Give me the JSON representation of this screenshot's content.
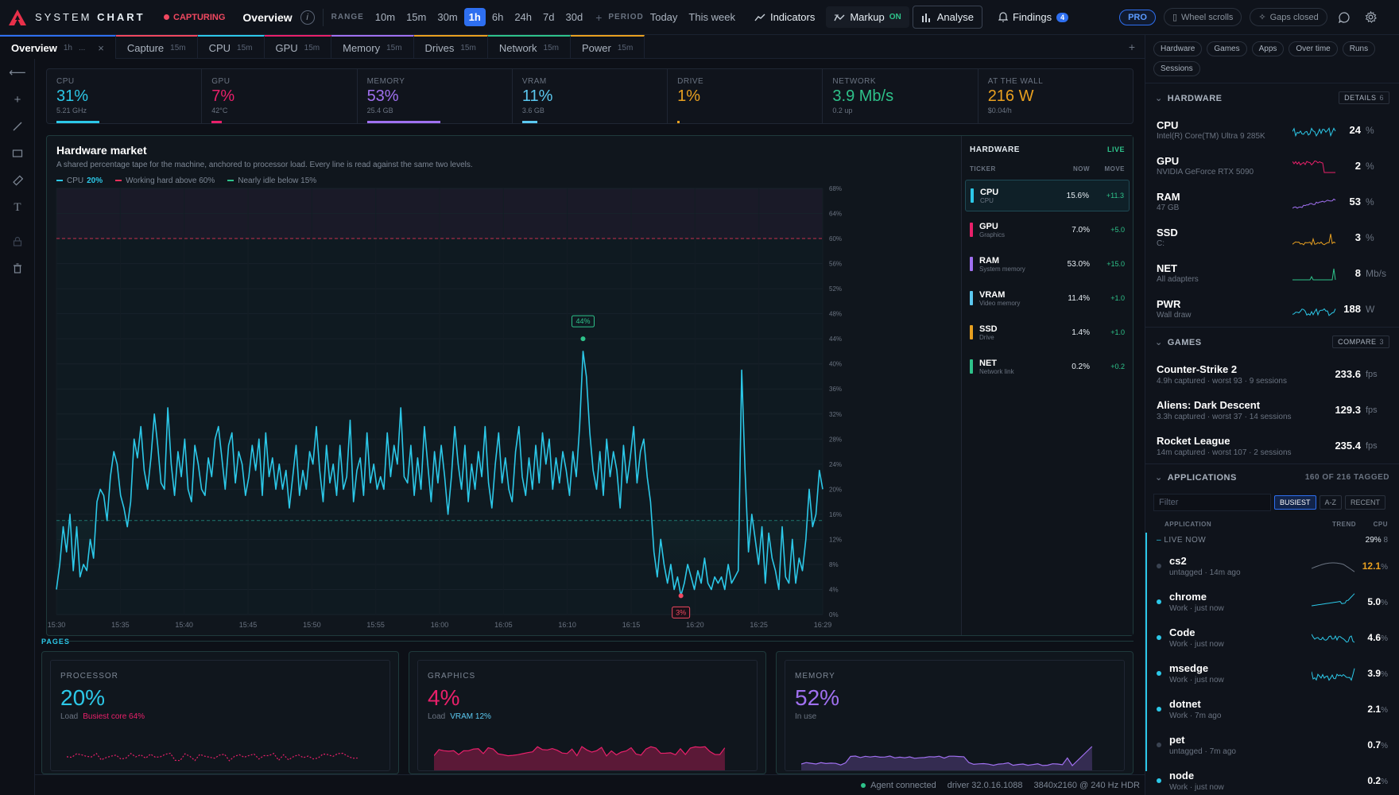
{
  "app": {
    "name_bold": "CHART",
    "name_thin": "SYSTEM ",
    "capturing": "CAPTURING",
    "title": "Overview",
    "info": "i"
  },
  "range": {
    "label": "RANGE",
    "options": [
      "10m",
      "15m",
      "30m",
      "1h",
      "6h",
      "24h",
      "7d",
      "30d"
    ],
    "active": "1h"
  },
  "period": {
    "label": "PERIOD",
    "options": [
      "Today",
      "This week"
    ]
  },
  "tools": {
    "indicators": "Indicators",
    "markup": "Markup",
    "markup_state": "ON",
    "analyse": "Analyse",
    "findings": "Findings",
    "findings_count": "4"
  },
  "badges": {
    "pro": "PRO",
    "wheel": "Wheel scrolls",
    "gaps": "Gaps closed"
  },
  "tabs": [
    {
      "label": "Overview",
      "dur": "1h",
      "extra": "...",
      "close": "×",
      "accent": "#2e6ff0"
    },
    {
      "label": "Capture",
      "dur": "15m",
      "accent": "#f04860"
    },
    {
      "label": "CPU",
      "dur": "15m",
      "accent": "#2cc8e8"
    },
    {
      "label": "GPU",
      "dur": "15m",
      "accent": "#e8206a"
    },
    {
      "label": "Memory",
      "dur": "15m",
      "accent": "#a070f0"
    },
    {
      "label": "Drives",
      "dur": "15m",
      "accent": "#e8a020"
    },
    {
      "label": "Network",
      "dur": "15m",
      "accent": "#2ec28a"
    },
    {
      "label": "Power",
      "dur": "15m",
      "accent": "#e8a020"
    }
  ],
  "metrics": [
    {
      "label": "CPU",
      "value": "31%",
      "sub": "5.21 GHz",
      "color": "#2cc8e8",
      "level": 31
    },
    {
      "label": "GPU",
      "value": "7%",
      "sub": "42°C",
      "color": "#e8206a",
      "level": 7
    },
    {
      "label": "MEMORY",
      "value": "53%",
      "sub": "25.4 GB",
      "color": "#a070f0",
      "level": 53
    },
    {
      "label": "VRAM",
      "value": "11%",
      "sub": "3.6 GB",
      "color": "#5bc8f0",
      "level": 11
    },
    {
      "label": "DRIVE",
      "value": "1%",
      "sub": "",
      "color": "#e8a020",
      "level": 1
    },
    {
      "label": "NETWORK",
      "value": "3.9 Mb/s",
      "sub": "0.2 up",
      "color": "#2ec28a",
      "level": 0
    },
    {
      "label": "AT THE WALL",
      "value": "216 W",
      "sub": "$0.04/h",
      "color": "#e8a020",
      "level": 0
    }
  ],
  "market": {
    "title": "Hardware market",
    "subtitle": "A shared percentage tape for the machine, anchored to processor load. Every line is read against the same two levels.",
    "legend_cpu": "CPU",
    "legend_cpu_value": "20%",
    "legend_high": "Working hard above 60%",
    "legend_low": "Nearly idle below 15%",
    "peak_label": "44%",
    "low_label": "3%"
  },
  "chart_data": {
    "type": "line",
    "series": [
      {
        "name": "CPU",
        "color": "#2cc8e8"
      }
    ],
    "x_ticks": [
      "15:30",
      "15:35",
      "15:40",
      "15:45",
      "15:50",
      "15:55",
      "16:00",
      "16:05",
      "16:10",
      "16:15",
      "16:20",
      "16:25",
      "16:29"
    ],
    "y_ticks": [
      "0%",
      "4%",
      "8%",
      "12%",
      "16%",
      "20%",
      "24%",
      "28%",
      "32%",
      "36%",
      "40%",
      "44%",
      "48%",
      "52%",
      "56%",
      "60%",
      "64%",
      "68%"
    ],
    "ylim": [
      0,
      68
    ],
    "levels": {
      "high": 60,
      "low": 15
    },
    "values": [
      4,
      8,
      14,
      10,
      16,
      7,
      14,
      6,
      8,
      7,
      12,
      9,
      18,
      20,
      19,
      15,
      22,
      26,
      24,
      19,
      17,
      14,
      18,
      28,
      25,
      30,
      23,
      20,
      25,
      32,
      27,
      21,
      20,
      33,
      24,
      19,
      26,
      22,
      28,
      20,
      18,
      27,
      24,
      20,
      19,
      25,
      22,
      28,
      30,
      25,
      20,
      27,
      29,
      21,
      26,
      24,
      19,
      22,
      27,
      23,
      28,
      19,
      29,
      22,
      25,
      20,
      24,
      20,
      23,
      17,
      22,
      27,
      19,
      23,
      20,
      26,
      24,
      30,
      23,
      18,
      27,
      21,
      24,
      19,
      27,
      20,
      22,
      31,
      18,
      23,
      25,
      19,
      29,
      21,
      24,
      20,
      22,
      20,
      29,
      22,
      27,
      24,
      33,
      22,
      21,
      27,
      19,
      25,
      20,
      30,
      24,
      18,
      26,
      21,
      27,
      22,
      16,
      22,
      30,
      24,
      20,
      27,
      18,
      24,
      20,
      26,
      22,
      30,
      21,
      17,
      24,
      29,
      21,
      25,
      20,
      18,
      26,
      30,
      22,
      19,
      25,
      20,
      27,
      21,
      29,
      24,
      28,
      20,
      25,
      21,
      26,
      23,
      19,
      26,
      22,
      30,
      42,
      38,
      29,
      23,
      20,
      26,
      19,
      28,
      22,
      26,
      23,
      17,
      27,
      21,
      25,
      30,
      21,
      26,
      28,
      22,
      18,
      10,
      6,
      12,
      8,
      5,
      8,
      4,
      6,
      3,
      5,
      8,
      6,
      4,
      7,
      5,
      9,
      5,
      4,
      6,
      5,
      6,
      4,
      8,
      5,
      6,
      7,
      39,
      23,
      10,
      16,
      12,
      8,
      14,
      5,
      13,
      9,
      7,
      4,
      14,
      6,
      5,
      12,
      5,
      9,
      7,
      12,
      20,
      14,
      16,
      23,
      20
    ],
    "peak": {
      "value": 44
    },
    "low": {
      "value": 3
    }
  },
  "hw_panel": {
    "title": "HARDWARE",
    "live": "LIVE",
    "cols": [
      "TICKER",
      "NOW",
      "MOVE"
    ],
    "rows": [
      {
        "name": "CPU",
        "sub": "CPU",
        "now": "15.6%",
        "move": "+11.3",
        "color": "#2cc8e8"
      },
      {
        "name": "GPU",
        "sub": "Graphics",
        "now": "7.0%",
        "move": "+5.0",
        "color": "#e8206a"
      },
      {
        "name": "RAM",
        "sub": "System memory",
        "now": "53.0%",
        "move": "+15.0",
        "color": "#a070f0"
      },
      {
        "name": "VRAM",
        "sub": "Video memory",
        "now": "11.4%",
        "move": "+1.0",
        "color": "#5bc8f0"
      },
      {
        "name": "SSD",
        "sub": "Drive",
        "now": "1.4%",
        "move": "+1.0",
        "color": "#e8a020"
      },
      {
        "name": "NET",
        "sub": "Network link",
        "now": "0.2%",
        "move": "+0.2",
        "color": "#2ec28a"
      }
    ]
  },
  "pages": {
    "label": "PAGES",
    "cards": [
      {
        "label": "PROCESSOR",
        "value": "20%",
        "sub": "Load",
        "hl": "Busiest core 64%",
        "color": "#2cc8e8",
        "hlcolor": "#e8206a"
      },
      {
        "label": "GRAPHICS",
        "value": "4%",
        "sub": "Load",
        "hl": "VRAM 12%",
        "color": "#e8206a",
        "hlcolor": "#5bc8f0"
      },
      {
        "label": "MEMORY",
        "value": "52%",
        "sub": "In use",
        "hl": "",
        "color": "#a070f0",
        "hlcolor": "#a070f0"
      }
    ]
  },
  "status": {
    "agent": "Agent connected",
    "driver": "driver 32.0.16.1088",
    "display": "3840x2160 @ 240 Hz HDR"
  },
  "sidebar": {
    "chips": [
      "Hardware",
      "Games",
      "Apps",
      "Over time",
      "Runs",
      "Sessions"
    ],
    "hardware": {
      "title": "HARDWARE",
      "action": "DETAILS",
      "action_n": "6",
      "items": [
        {
          "name": "CPU",
          "sub": "Intel(R) Core(TM) Ultra 9 285K",
          "value": "24",
          "unit": "%",
          "color": "#2cc8e8"
        },
        {
          "name": "GPU",
          "sub": "NVIDIA GeForce RTX 5090",
          "value": "2",
          "unit": "%",
          "color": "#e8206a"
        },
        {
          "name": "RAM",
          "sub": "47 GB",
          "value": "53",
          "unit": "%",
          "color": "#a070f0"
        },
        {
          "name": "SSD",
          "sub": "C:",
          "value": "3",
          "unit": "%",
          "color": "#e8a020"
        },
        {
          "name": "NET",
          "sub": "All adapters",
          "value": "8",
          "unit": "Mb/s",
          "color": "#2ec28a"
        },
        {
          "name": "PWR",
          "sub": "Wall draw",
          "value": "188",
          "unit": "W",
          "color": "#2cc8e8"
        }
      ]
    },
    "games": {
      "title": "GAMES",
      "action": "COMPARE",
      "action_n": "3",
      "items": [
        {
          "name": "Counter-Strike 2",
          "sub": "4.9h captured · worst 93 · 9 sessions",
          "fps": "233.6",
          "unit": "fps"
        },
        {
          "name": "Aliens: Dark Descent",
          "sub": "3.3h captured · worst 37 · 14 sessions",
          "fps": "129.3",
          "unit": "fps"
        },
        {
          "name": "Rocket League",
          "sub": "14m captured · worst 107 · 2 sessions",
          "fps": "235.4",
          "unit": "fps"
        }
      ]
    },
    "apps": {
      "title": "APPLICATIONS",
      "tagged": "160 OF 216 TAGGED",
      "filter_placeholder": "Filter",
      "sorts": [
        "BUSIEST",
        "A-Z",
        "RECENT"
      ],
      "cols": [
        "APPLICATION",
        "TREND",
        "CPU"
      ],
      "live_label": "LIVE NOW",
      "live_total": "29%",
      "live_count": "8",
      "items": [
        {
          "name": "cs2",
          "sub": "untagged · 14m ago",
          "cpu": "12.1",
          "dot": "#3a4352",
          "cpu_color": "#e8a020",
          "spark": "#6a7381"
        },
        {
          "name": "chrome",
          "sub": "Work · just now",
          "cpu": "5.0",
          "dot": "#2cc8e8",
          "cpu_color": "#fff",
          "spark": "#2cc8e8"
        },
        {
          "name": "Code",
          "sub": "Work · just now",
          "cpu": "4.6",
          "dot": "#2cc8e8",
          "cpu_color": "#fff",
          "spark": "#2cc8e8"
        },
        {
          "name": "msedge",
          "sub": "Work · just now",
          "cpu": "3.9",
          "dot": "#2cc8e8",
          "cpu_color": "#fff",
          "spark": "#2cc8e8"
        },
        {
          "name": "dotnet",
          "sub": "Work · 7m ago",
          "cpu": "2.1",
          "dot": "#2cc8e8",
          "cpu_color": "#fff",
          "spark": ""
        },
        {
          "name": "pet",
          "sub": "untagged · 7m ago",
          "cpu": "0.7",
          "dot": "#3a4352",
          "cpu_color": "#fff",
          "spark": ""
        },
        {
          "name": "node",
          "sub": "Work · just now",
          "cpu": "0.2",
          "dot": "#2cc8e8",
          "cpu_color": "#fff",
          "spark": ""
        }
      ]
    }
  }
}
